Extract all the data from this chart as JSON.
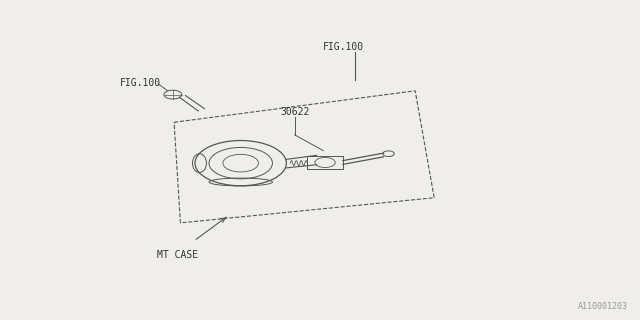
{
  "bg_color": "#f0eeea",
  "line_color": "#555555",
  "text_color": "#333333",
  "watermark": "A110001203",
  "labels": {
    "fig100_left": "FIG.100",
    "fig100_top": "FIG.100",
    "part30622": "30622",
    "mtcase": "MT CASE"
  }
}
